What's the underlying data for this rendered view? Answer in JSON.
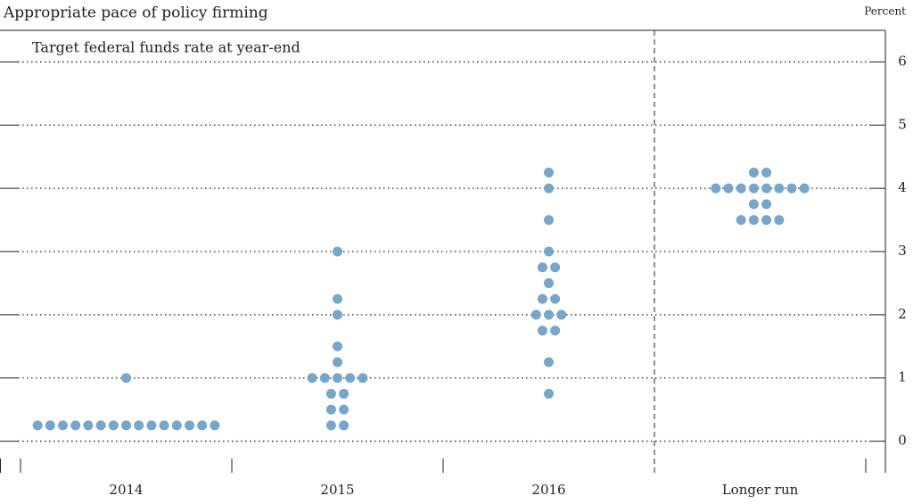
{
  "chart_data": {
    "type": "dot",
    "title": "Appropriate pace of policy firming",
    "subtitle": "Target federal funds rate at year-end",
    "y_axis_label": "Percent",
    "categories": [
      "2014",
      "2015",
      "2016",
      "Longer run"
    ],
    "values": [
      [
        0.25,
        0.25,
        0.25,
        0.25,
        0.25,
        0.25,
        0.25,
        0.25,
        0.25,
        0.25,
        0.25,
        0.25,
        0.25,
        0.25,
        0.25,
        1
      ],
      [
        3,
        2.25,
        2,
        1.5,
        1.25,
        1,
        1,
        1,
        1,
        1,
        0.75,
        0.75,
        0.5,
        0.5,
        0.25,
        0.25
      ],
      [
        4.25,
        4,
        3.5,
        3,
        2.75,
        2.75,
        2.5,
        2.25,
        2.25,
        2,
        2,
        2,
        1.75,
        1.75,
        1.25,
        0.75
      ],
      [
        4.25,
        4.25,
        4,
        4,
        4,
        4,
        4,
        4,
        4,
        4,
        3.75,
        3.75,
        3.5,
        3.5,
        3.5,
        3.5
      ]
    ],
    "color": "#78a6c9",
    "ylim": [
      -0.5,
      6.5
    ],
    "yticks": [
      0,
      1,
      2,
      3,
      4,
      5,
      6
    ],
    "grid": true
  }
}
